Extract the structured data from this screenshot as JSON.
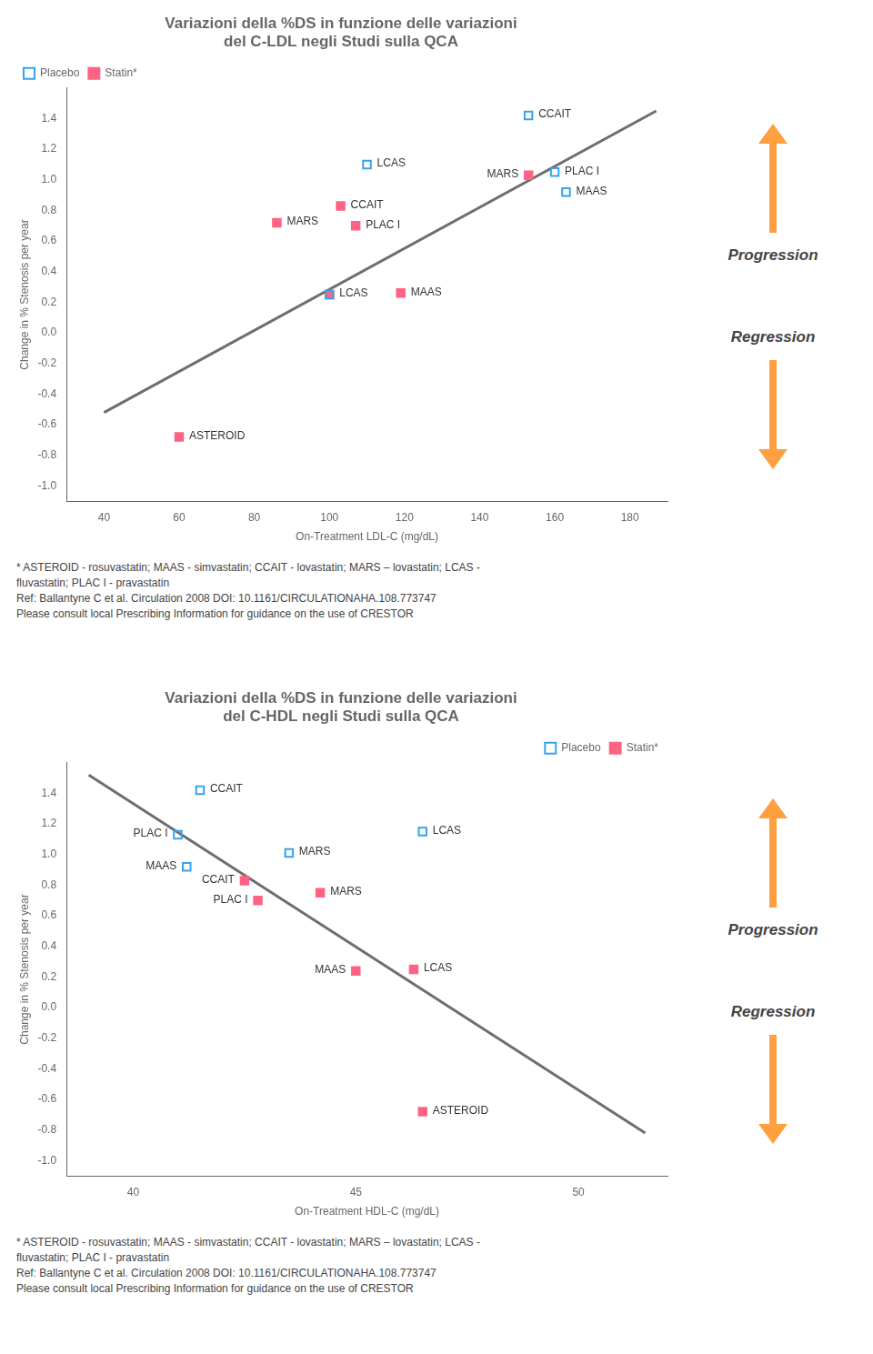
{
  "chart_data": [
    {
      "type": "scatter",
      "title": [
        "Variazioni della %DS in funzione delle variazioni",
        "del C-LDL negli Studi sulla QCA"
      ],
      "x_label": "On-Treatment LDL-C (mg/dL)",
      "y_label": "Change in % Stenosis per year",
      "xlim": [
        30,
        190
      ],
      "ylim": [
        -1.1,
        1.6
      ],
      "xticks": [
        40,
        60,
        80,
        100,
        120,
        140,
        160,
        180
      ],
      "yticks": [
        {
          "value": -1,
          "label": "-1.0"
        },
        -0.8,
        -0.6,
        -0.4,
        -0.2,
        {
          "value": 0,
          "label": "0.0"
        },
        0.2,
        0.4,
        0.6,
        0.8,
        {
          "value": 1.0,
          "label": "1.0"
        },
        1.2,
        1.4
      ],
      "grid": false,
      "legend": "upper left",
      "series": [
        {
          "type": "line",
          "x": [
            40,
            187
          ],
          "values": [
            -0.52,
            1.45
          ]
        },
        {
          "name": "Placebo",
          "marker": "square-open",
          "x": [
            100,
            110,
            153,
            160,
            163
          ],
          "values": [
            0.25,
            1.1,
            1.42,
            1.05,
            0.92
          ],
          "labels": [
            null,
            "LCAS",
            "CCAIT",
            "PLAC I",
            "MAAS"
          ]
        },
        {
          "name": "Statin*",
          "marker": "square",
          "x": [
            60,
            86,
            100,
            103,
            107,
            119,
            153
          ],
          "values": [
            -0.68,
            0.72,
            0.25,
            0.83,
            0.7,
            0.26,
            1.03
          ],
          "labels": [
            "ASTEROID",
            "MARS",
            "LCAS",
            "CCAIT",
            "PLAC I",
            "MAAS",
            "MARS"
          ]
        }
      ],
      "annotations": [
        "Progression",
        "Regression"
      ],
      "footnotes": [
        "* ASTEROID - rosuvastatin; MAAS - simvastatin; CCAIT - lovastatin; MARS – lovastatin;  LCAS -",
        "fluvastatin; PLAC I - pravastatin",
        "Ref: Ballantyne C et al. Circulation 2008 DOI: 10.1161/CIRCULATIONAHA.108.773747",
        "Please consult local Prescribing Information for guidance on the use of CRESTOR"
      ]
    },
    {
      "type": "scatter",
      "title": [
        "Variazioni della %DS in funzione delle variazioni",
        "del C-HDL negli Studi sulla QCA"
      ],
      "x_label": "On-Treatment HDL-C (mg/dL)",
      "y_label": "Change in % Stenosis per year",
      "xlim": [
        38.5,
        52
      ],
      "ylim": [
        -1.1,
        1.6
      ],
      "xticks": [
        40,
        45,
        50
      ],
      "yticks": [
        {
          "value": -1,
          "label": "-1.0"
        },
        -0.8,
        -0.6,
        -0.4,
        -0.2,
        {
          "value": 0,
          "label": "0.0"
        },
        0.2,
        0.4,
        0.6,
        0.8,
        {
          "value": 1.0,
          "label": "1.0"
        },
        1.2,
        1.4
      ],
      "grid": false,
      "legend": "upper right",
      "series": [
        {
          "type": "line",
          "x": [
            39.0,
            51.5
          ],
          "values": [
            1.52,
            -0.82
          ]
        },
        {
          "name": "Placebo",
          "marker": "square-open",
          "x": [
            41.5,
            41.0,
            41.2,
            43.5,
            46.5
          ],
          "values": [
            1.42,
            1.13,
            0.92,
            1.01,
            1.15
          ],
          "labels": [
            "CCAIT",
            "PLAC I",
            "MAAS",
            "MARS",
            "LCAS"
          ]
        },
        {
          "name": "Statin*",
          "marker": "square",
          "x": [
            46.5,
            42.5,
            42.8,
            44.2,
            46.3,
            45.0
          ],
          "values": [
            -0.68,
            0.83,
            0.7,
            0.75,
            0.25,
            0.24
          ],
          "labels": [
            "ASTEROID",
            "CCAIT",
            "PLAC I",
            "MARS",
            "LCAS",
            "MAAS"
          ]
        }
      ],
      "annotations": [
        "Progression",
        "Regression"
      ],
      "footnotes": [
        "* ASTEROID - rosuvastatin; MAAS - simvastatin; CCAIT - lovastatin; MARS – lovastatin;  LCAS -",
        "fluvastatin; PLAC I - pravastatin",
        "Ref: Ballantyne C et al. Circulation 2008 DOI: 10.1161/CIRCULATIONAHA.108.773747",
        "Please consult local Prescribing Information for guidance on the use of CRESTOR"
      ]
    }
  ]
}
